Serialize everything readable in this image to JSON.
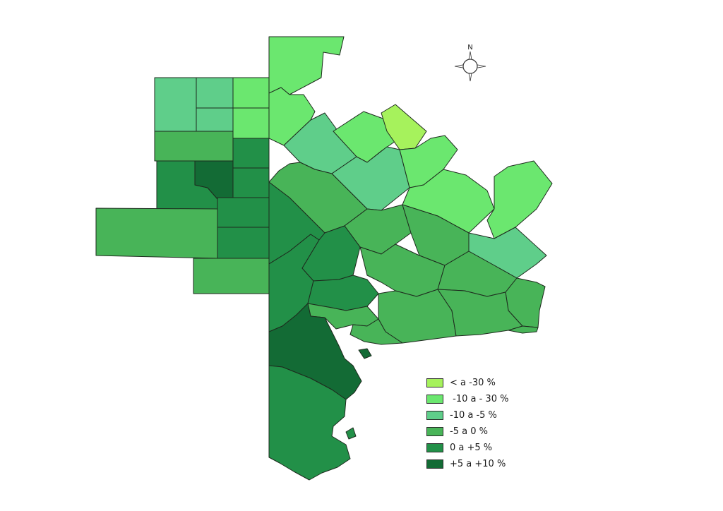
{
  "map": {
    "compass_label": "N",
    "classes": [
      {
        "label": "< a -30 %",
        "color": "#a6f25c"
      },
      {
        "label": " -10 a - 30 %",
        "color": "#6be76f"
      },
      {
        "label": "-10 a -5 %",
        "color": "#5fce8a"
      },
      {
        "label": "-5 a 0 %",
        "color": "#48b458"
      },
      {
        "label": "0 a +5 %",
        "color": "#229048"
      },
      {
        "label": "+5 a +10 %",
        "color": "#136b35"
      }
    ],
    "regions": [
      {
        "name": "north-strip-top",
        "cls": 1
      },
      {
        "name": "north-strip-lower",
        "cls": 1
      },
      {
        "name": "west-grid-nw",
        "cls": 2
      },
      {
        "name": "west-grid-nm1",
        "cls": 2
      },
      {
        "name": "west-grid-nm2",
        "cls": 2
      },
      {
        "name": "west-grid-ne1",
        "cls": 1
      },
      {
        "name": "west-grid-ne2",
        "cls": 1
      },
      {
        "name": "west-band",
        "cls": 3
      },
      {
        "name": "west-block-large",
        "cls": 4
      },
      {
        "name": "west-notch",
        "cls": 5
      },
      {
        "name": "west-col-1",
        "cls": 4
      },
      {
        "name": "west-col-2",
        "cls": 4
      },
      {
        "name": "west-col-3",
        "cls": 4
      },
      {
        "name": "west-col-4",
        "cls": 4
      },
      {
        "name": "far-west-block",
        "cls": 3
      },
      {
        "name": "south-west-block",
        "cls": 3
      },
      {
        "name": "center-diag-1",
        "cls": 2
      },
      {
        "name": "center-diag-2",
        "cls": 1
      },
      {
        "name": "lime-parcel",
        "cls": 0
      },
      {
        "name": "center-diag-3",
        "cls": 2
      },
      {
        "name": "center-diag-4",
        "cls": 1
      },
      {
        "name": "east-mid",
        "cls": 1
      },
      {
        "name": "east-arm",
        "cls": 1
      },
      {
        "name": "east-coast-med",
        "cls": 2
      },
      {
        "name": "center-mid-1",
        "cls": 3
      },
      {
        "name": "center-mid-2",
        "cls": 3
      },
      {
        "name": "center-mid-3",
        "cls": 3
      },
      {
        "name": "center-mid-4",
        "cls": 3
      },
      {
        "name": "center-mid-5",
        "cls": 3
      },
      {
        "name": "center-mid-6",
        "cls": 3
      },
      {
        "name": "central-strip",
        "cls": 4
      },
      {
        "name": "central-lower",
        "cls": 4
      },
      {
        "name": "central-inner-1",
        "cls": 4
      },
      {
        "name": "central-inner-2",
        "cls": 4
      },
      {
        "name": "central-inner-3",
        "cls": 3
      },
      {
        "name": "coast-1",
        "cls": 3
      },
      {
        "name": "coast-2",
        "cls": 3
      },
      {
        "name": "coast-3",
        "cls": 3
      },
      {
        "name": "coast-4",
        "cls": 3
      },
      {
        "name": "south-dark",
        "cls": 5
      },
      {
        "name": "south-bottom",
        "cls": 4
      },
      {
        "name": "island-1",
        "cls": 5
      },
      {
        "name": "island-2",
        "cls": 4
      }
    ]
  }
}
